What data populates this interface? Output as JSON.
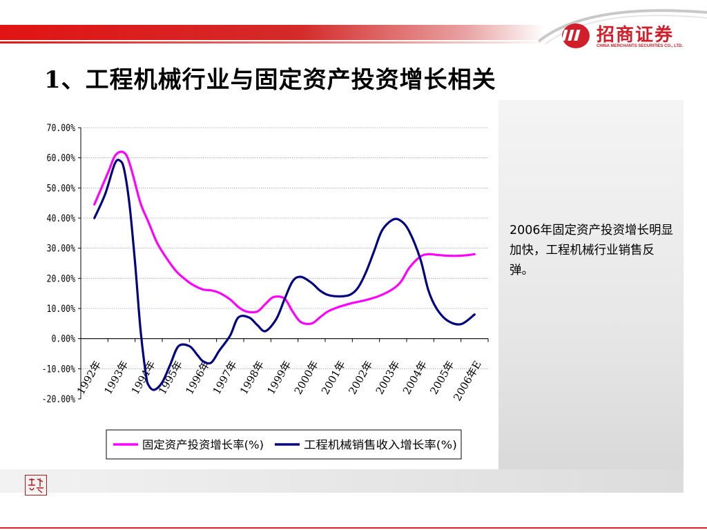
{
  "header": {
    "logo_cn": "招商证券",
    "logo_en": "CHINA MERCHANTS SECURITIES CO., LTD.",
    "title": "1、工程机械行业与固定资产投资增长相关"
  },
  "note_text": "2006年固定资产投资增长明显加快，工程机械行业销售反弹。",
  "seal_text": "",
  "colors": {
    "accent": "#d01f2a",
    "series1": "#ff00ff",
    "series2": "#000080"
  },
  "chart_data": {
    "type": "line",
    "title": "",
    "xlabel": "",
    "ylabel": "",
    "ylim": [
      -0.2,
      0.7
    ],
    "ytick_labels": [
      "70.00%",
      "60.00%",
      "50.00%",
      "40.00%",
      "30.00%",
      "20.00%",
      "10.00%",
      "0.00%",
      "-10.00%",
      "-20.00%"
    ],
    "categories": [
      "1992年",
      "1993年",
      "1994年",
      "1995年",
      "1996年",
      "1997年",
      "1998年",
      "1999年",
      "2000年",
      "2001年",
      "2002年",
      "2003年",
      "2004年",
      "2005年",
      "2006年E"
    ],
    "grid": true,
    "legend_position": "bottom",
    "series": [
      {
        "name": "固定资产投资增长率(%)",
        "color": "#ff00ff",
        "x": [
          0,
          0.5,
          0.75,
          1,
          1.2,
          1.4,
          1.7,
          2,
          2.3,
          2.6,
          3,
          3.3,
          3.6,
          4,
          4.3,
          4.6,
          5,
          5.3,
          5.6,
          6,
          6.3,
          6.6,
          7,
          7.3,
          7.6,
          8,
          8.3,
          8.6,
          9,
          9.5,
          10,
          10.5,
          11,
          11.3,
          11.6,
          12,
          12.3,
          12.6,
          13,
          13.5,
          14
        ],
        "values": [
          0.445,
          0.55,
          0.605,
          0.62,
          0.605,
          0.55,
          0.45,
          0.385,
          0.32,
          0.275,
          0.225,
          0.2,
          0.18,
          0.163,
          0.16,
          0.152,
          0.13,
          0.105,
          0.09,
          0.09,
          0.115,
          0.138,
          0.133,
          0.09,
          0.055,
          0.05,
          0.07,
          0.09,
          0.105,
          0.118,
          0.128,
          0.142,
          0.165,
          0.19,
          0.235,
          0.272,
          0.28,
          0.278,
          0.275,
          0.275,
          0.28
        ]
      },
      {
        "name": "工程机械销售收入增长率(%)",
        "color": "#000080",
        "x": [
          0,
          0.4,
          0.75,
          0.95,
          1.1,
          1.3,
          1.5,
          1.7,
          1.9,
          2,
          2.2,
          2.5,
          2.8,
          3.1,
          3.5,
          3.8,
          4,
          4.3,
          4.6,
          5,
          5.3,
          5.7,
          6,
          6.3,
          6.7,
          7,
          7.3,
          7.6,
          8,
          8.3,
          8.6,
          9,
          9.4,
          9.7,
          10,
          10.3,
          10.6,
          11,
          11.3,
          11.6,
          12,
          12.3,
          12.6,
          13,
          13.5,
          14
        ],
        "values": [
          0.4,
          0.48,
          0.58,
          0.59,
          0.56,
          0.44,
          0.25,
          0.03,
          -0.12,
          -0.155,
          -0.17,
          -0.145,
          -0.085,
          -0.025,
          -0.025,
          -0.055,
          -0.075,
          -0.08,
          -0.04,
          0.01,
          0.07,
          0.07,
          0.045,
          0.025,
          0.065,
          0.13,
          0.19,
          0.205,
          0.185,
          0.16,
          0.145,
          0.14,
          0.145,
          0.168,
          0.22,
          0.29,
          0.36,
          0.395,
          0.39,
          0.355,
          0.265,
          0.16,
          0.1,
          0.06,
          0.048,
          0.08
        ]
      }
    ]
  }
}
